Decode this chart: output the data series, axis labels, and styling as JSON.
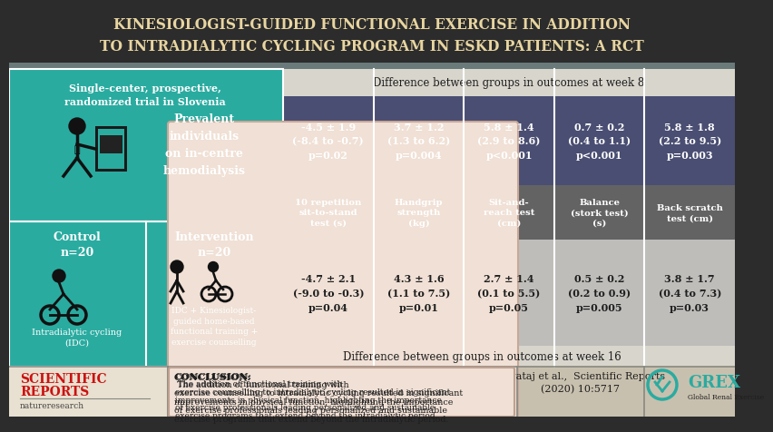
{
  "title_line1": "KINESIOLOGIST-GUIDED FUNCTIONAL EXERCISE IN ADDITION",
  "title_line2": "TO INTRADIALYTIC CYCLING PROGRAM IN ESKD PATIENTS: A RCT",
  "title_bg": "#2c2c2c",
  "title_color": "#e8d5a0",
  "teal_bg": "#2aaba0",
  "purple_bg": "#4a4e72",
  "dark_gray_label_bg": "#636363",
  "light_gray_bg": "#bebdba",
  "header_bar_bg": "#d8d5cc",
  "bottom_outer_bg": "#c8c0ae",
  "conclusion_bg": "#f0e0d5",
  "week8_header": "Difference between groups in outcomes at week 8",
  "week16_header": "Difference between groups in outcomes at week 16",
  "col_labels": [
    "10 repetition\nsit-to-stand\ntest (s)",
    "Handgrip\nstrength\n(kg)",
    "Sit-and-\nreach test\n(cm)",
    "Balance\n(stork test)\n(s)",
    "Back scratch\ntest (cm)"
  ],
  "week8_vals": [
    "-4.5 ± 1.9\n(-8.4 to -0.7)\np=0.02",
    "3.7 ± 1.2\n(1.3 to 6.2)\np=0.004",
    "5.8 ± 1.4\n(2.9 to 8.6)\np<0.001",
    "0.7 ± 0.2\n(0.4 to 1.1)\np<0.001",
    "5.8 ± 1.8\n(2.2 to 9.5)\np=0.003"
  ],
  "week16_vals": [
    "-4.7 ± 2.1\n(-9.0 to -0.3)\np=0.04",
    "4.3 ± 1.6\n(1.1 to 7.5)\np=0.01",
    "2.7 ± 1.4\n(0.1 to 5.5)\np=0.05",
    "0.5 ± 0.2\n(0.2 to 0.9)\np=0.005",
    "3.8 ± 1.7\n(0.4 to 7.3)\np=0.03"
  ],
  "left_top_study": "Single-center, prospective,\nrandomized trial in Slovenia",
  "prevalent_text": "Prevalent\nindividuals\non in-centre\nhemodialysis",
  "control_label": "Control\nn=20",
  "control_sub": "Intradialytic cycling\n(IDC)",
  "intervention_label": "Intervention\nn=20",
  "intervention_sub": "IDC + Kinesiologist-\nguided home-based\nfunctional training +\nexercise counselling",
  "conclusion_bold": "CONCLUSION:",
  "conclusion_rest": " The addition of functional training with exercise counselling to intradialytic cycling resulted in significant improvements in physical function, highlighting the importance of exercise professionals leading personalized and sustainable exercise programs that extend beyond the intradialytic period.",
  "citation": "Bogataj et al.,  Scientific Reports\n(2020) 10:5717",
  "sci_reports_color": "#cc1111",
  "grex_color": "#2aaba0",
  "white": "#ffffff",
  "dark_text": "#1e1e1e",
  "gray_divider": "#888880"
}
